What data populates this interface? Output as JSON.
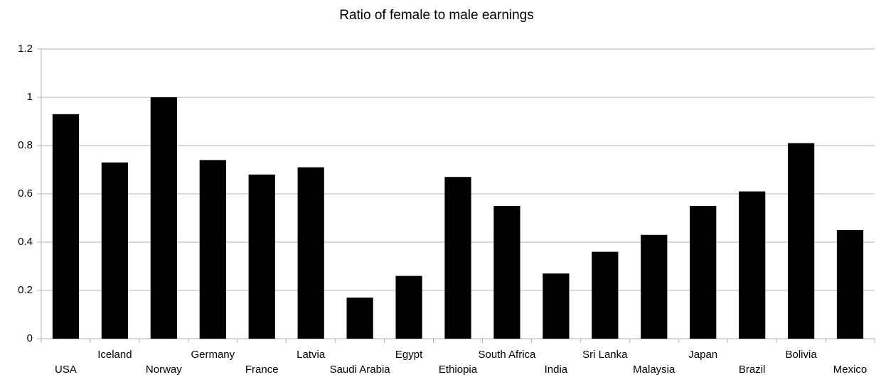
{
  "chart_data": {
    "type": "bar",
    "title": "Ratio of female to male earnings",
    "categories": [
      "USA",
      "Iceland",
      "Norway",
      "Germany",
      "France",
      "Latvia",
      "Saudi Arabia",
      "Egypt",
      "Ethiopia",
      "South Africa",
      "India",
      "Sri Lanka",
      "Malaysia",
      "Japan",
      "Brazil",
      "Bolivia",
      "Mexico"
    ],
    "values": [
      0.93,
      0.73,
      1.0,
      0.74,
      0.68,
      0.71,
      0.17,
      0.26,
      0.67,
      0.55,
      0.27,
      0.36,
      0.43,
      0.55,
      0.61,
      0.81,
      0.45
    ],
    "color": "#000000",
    "ylim": [
      0,
      1.2
    ],
    "yticks": [
      0,
      0.2,
      0.4,
      0.6,
      0.8,
      1,
      1.2
    ],
    "grid": true
  }
}
